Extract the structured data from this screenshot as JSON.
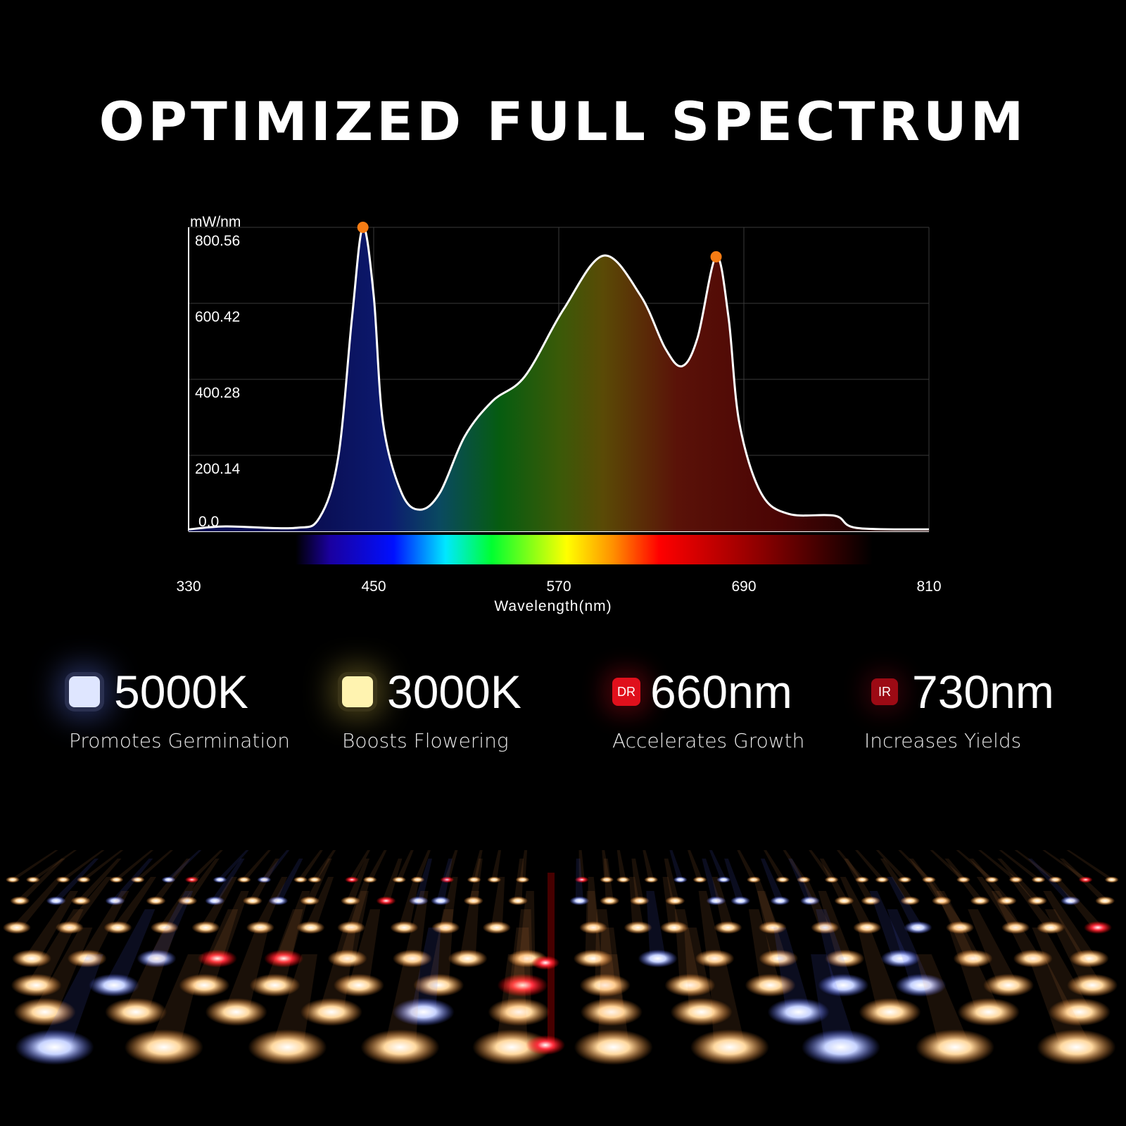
{
  "title": "OPTIMIZED FULL SPECTRUM",
  "chart_data": {
    "type": "area",
    "ylabel": "mW/nm",
    "xlabel": "Wavelength(nm)",
    "xlim": [
      330,
      810
    ],
    "ylim": [
      0,
      800.56
    ],
    "xticks": [
      "330",
      "450",
      "570",
      "690",
      "810"
    ],
    "yticks": [
      "0.0",
      "200.14",
      "400.28",
      "600.42",
      "800.56"
    ],
    "grid": true,
    "x": [
      330,
      354,
      399,
      415,
      427,
      436,
      443,
      450,
      456,
      468,
      480,
      493,
      509,
      527,
      548,
      573,
      599,
      623,
      639,
      650,
      660,
      672,
      680,
      687,
      701,
      719,
      749,
      763,
      810
    ],
    "y": [
      5,
      13,
      9,
      37,
      195,
      565,
      800.56,
      621,
      287,
      102,
      57,
      102,
      250,
      343,
      408,
      584,
      726,
      621,
      482,
      435,
      510,
      723,
      565,
      287,
      102,
      46,
      41,
      9,
      5
    ],
    "highlighted_peaks": [
      {
        "x": 443,
        "y": 800.56
      },
      {
        "x": 672,
        "y": 723
      }
    ],
    "marker_color": "#f57c14",
    "line_color": "#ffffff"
  },
  "features": [
    {
      "value": "5000K",
      "desc": "Promotes Germination",
      "chip_label": "",
      "color": "#dfe6ff"
    },
    {
      "value": "3000K",
      "desc": "Boosts Flowering",
      "chip_label": "",
      "color": "#fff3b0"
    },
    {
      "value": "660nm",
      "desc": "Accelerates Growth",
      "chip_label": "DR",
      "color": "#e0101c"
    },
    {
      "value": "730nm",
      "desc": "Increases Yields",
      "chip_label": "IR",
      "color": "#9c0a14"
    }
  ]
}
